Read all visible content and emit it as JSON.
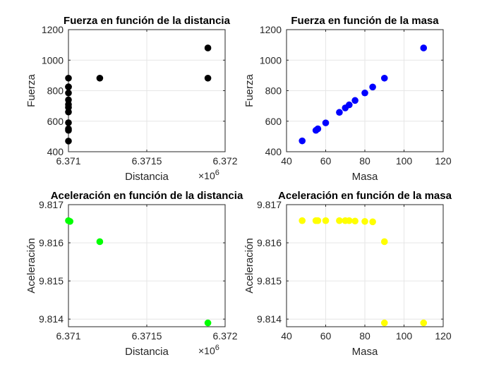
{
  "chart_data": [
    {
      "type": "scatter",
      "title": "Fuerza en función de la distancia",
      "xlabel": "Distancia",
      "ylabel": "Fuerza",
      "x_exponent_label": "×10",
      "x_exponent_power": "6",
      "xlim": [
        6.371,
        6.372
      ],
      "ylim": [
        400,
        1200
      ],
      "xticks": [
        6.371,
        6.3715,
        6.372
      ],
      "xtick_labels": [
        "6.371",
        "6.3715",
        "6.372"
      ],
      "yticks": [
        400,
        600,
        800,
        1000,
        1200
      ],
      "ytick_labels": [
        "400",
        "600",
        "800",
        "1000",
        "1200"
      ],
      "grid": true,
      "marker_color": "#000000",
      "series": [
        {
          "x": [
            6.371,
            6.371,
            6.371,
            6.371,
            6.371,
            6.371,
            6.371,
            6.371,
            6.371,
            6.371,
            6.371,
            6.371,
            6.3712,
            6.37189,
            6.37189
          ],
          "y": [
            470,
            540,
            550,
            590,
            660,
            690,
            710,
            740,
            785,
            825,
            882,
            825,
            882,
            882,
            1080
          ]
        }
      ]
    },
    {
      "type": "scatter",
      "title": "Fuerza en función de la masa",
      "xlabel": "Masa",
      "ylabel": "Fuerza",
      "xlim": [
        40,
        120
      ],
      "ylim": [
        400,
        1200
      ],
      "xticks": [
        40,
        60,
        80,
        100,
        120
      ],
      "xtick_labels": [
        "40",
        "60",
        "80",
        "100",
        "120"
      ],
      "yticks": [
        400,
        600,
        800,
        1000,
        1200
      ],
      "ytick_labels": [
        "400",
        "600",
        "800",
        "1000",
        "1200"
      ],
      "grid": true,
      "marker_color": "#0000ff",
      "series": [
        {
          "x": [
            48,
            55,
            56,
            60,
            67,
            70,
            72,
            75,
            80,
            84,
            90,
            110
          ],
          "y": [
            471,
            540,
            550,
            589,
            658,
            687,
            707,
            736,
            785,
            824,
            882,
            1080
          ]
        }
      ]
    },
    {
      "type": "scatter",
      "title": "Aceleración en función de la distancia",
      "xlabel": "Distancia",
      "ylabel": "Aceleración",
      "x_exponent_label": "×10",
      "x_exponent_power": "6",
      "xlim": [
        6.371,
        6.372
      ],
      "ylim": [
        9.8138,
        9.817
      ],
      "xticks": [
        6.371,
        6.3715,
        6.372
      ],
      "xtick_labels": [
        "6.371",
        "6.3715",
        "6.372"
      ],
      "yticks": [
        9.814,
        9.815,
        9.816,
        9.817
      ],
      "ytick_labels": [
        "9.814",
        "9.815",
        "9.816",
        "9.817"
      ],
      "grid": true,
      "marker_color": "#00ff00",
      "series": [
        {
          "x": [
            6.371,
            6.37101,
            6.3712,
            6.37189
          ],
          "y": [
            9.81658,
            9.81656,
            9.81603,
            9.8139
          ]
        }
      ]
    },
    {
      "type": "scatter",
      "title": "Aceleración en función de la masa",
      "xlabel": "Masa",
      "ylabel": "Aceleración",
      "xlim": [
        40,
        120
      ],
      "ylim": [
        9.8138,
        9.817
      ],
      "xticks": [
        40,
        60,
        80,
        100,
        120
      ],
      "xtick_labels": [
        "40",
        "60",
        "80",
        "100",
        "120"
      ],
      "yticks": [
        9.814,
        9.815,
        9.816,
        9.817
      ],
      "ytick_labels": [
        "9.814",
        "9.815",
        "9.816",
        "9.817"
      ],
      "grid": true,
      "marker_color": "#ffff00",
      "series": [
        {
          "x": [
            48,
            55,
            56,
            60,
            67,
            70,
            72,
            75,
            80,
            84,
            90,
            90,
            110
          ],
          "y": [
            9.81658,
            9.81658,
            9.81658,
            9.81658,
            9.81658,
            9.81658,
            9.81658,
            9.81657,
            9.81656,
            9.81655,
            9.81603,
            9.8139,
            9.8139
          ]
        }
      ]
    }
  ]
}
